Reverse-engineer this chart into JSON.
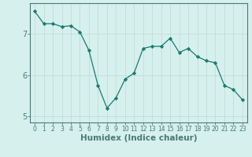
{
  "x": [
    0,
    1,
    2,
    3,
    4,
    5,
    6,
    7,
    8,
    9,
    10,
    11,
    12,
    13,
    14,
    15,
    16,
    17,
    18,
    19,
    20,
    21,
    22,
    23
  ],
  "y": [
    7.55,
    7.25,
    7.25,
    7.18,
    7.2,
    7.05,
    6.6,
    5.75,
    5.2,
    5.45,
    5.9,
    6.05,
    6.65,
    6.7,
    6.7,
    6.9,
    6.55,
    6.65,
    6.45,
    6.35,
    6.3,
    5.75,
    5.65,
    5.4
  ],
  "line_color": "#1a7a6e",
  "marker": "D",
  "marker_size": 2.2,
  "bg_color": "#d6f0ed",
  "grid_color": "#c0ddd9",
  "axis_color": "#4a7a76",
  "xlabel": "Humidex (Indice chaleur)",
  "ylim": [
    4.85,
    7.75
  ],
  "xlim": [
    -0.5,
    23.5
  ],
  "yticks": [
    5,
    6,
    7
  ],
  "xticks": [
    0,
    1,
    2,
    3,
    4,
    5,
    6,
    7,
    8,
    9,
    10,
    11,
    12,
    13,
    14,
    15,
    16,
    17,
    18,
    19,
    20,
    21,
    22,
    23
  ],
  "tick_fontsize": 5.5,
  "xlabel_fontsize": 7.5,
  "ytick_fontsize": 7.0
}
